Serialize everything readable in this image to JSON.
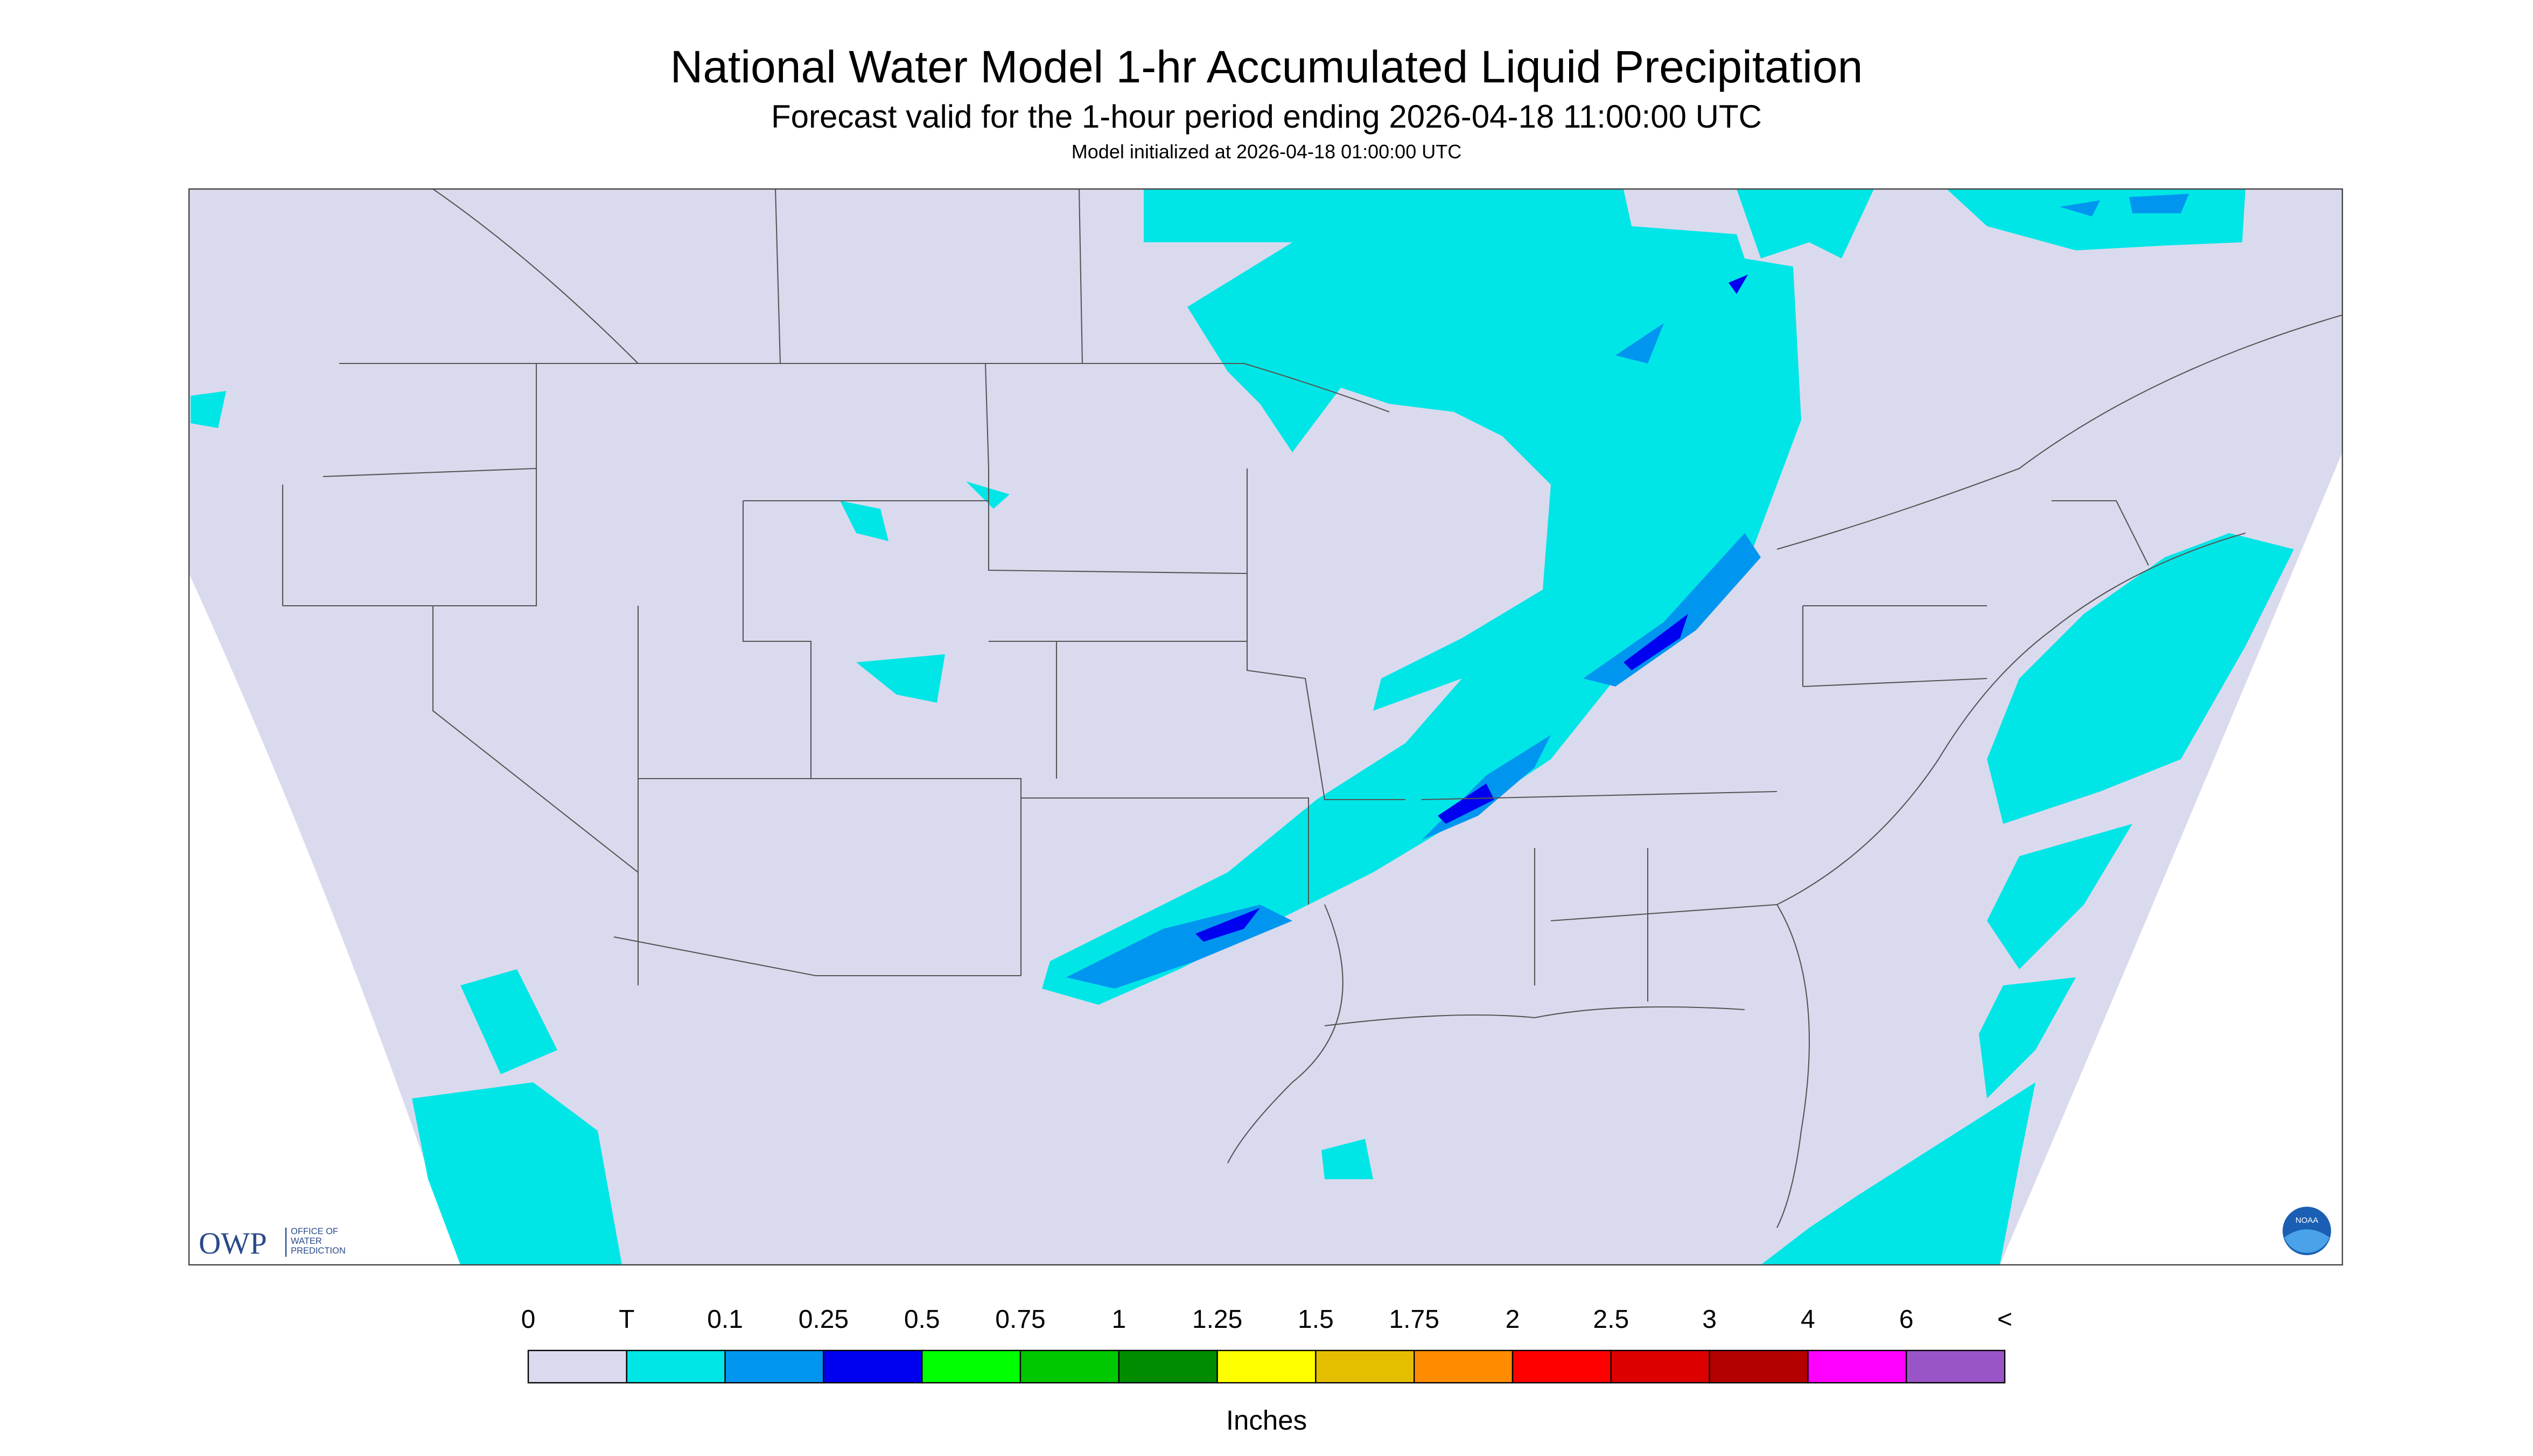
{
  "header": {
    "title": "National Water Model 1-hr Accumulated Liquid Precipitation",
    "subtitle": "Forecast valid for the 1-hour period ending 2026-04-18 11:00:00 UTC",
    "initialized": "Model initialized at 2026-04-18 01:00:00 UTC"
  },
  "logos": {
    "owp": "OWP",
    "owp_name": [
      "OFFICE OF",
      "WATER",
      "PREDICTION"
    ],
    "noaa": "NOAA"
  },
  "legend": {
    "labels": [
      "0",
      "T",
      "0.1",
      "0.25",
      "0.5",
      "0.75",
      "1",
      "1.25",
      "1.5",
      "1.75",
      "2",
      "2.5",
      "3",
      "4",
      "6",
      "<"
    ],
    "colors": [
      "#dadaee",
      "#00e6e6",
      "#0096f0",
      "#0000f0",
      "#00ff00",
      "#00c800",
      "#008c00",
      "#ffff00",
      "#e6be00",
      "#ff8c00",
      "#ff0000",
      "#dc0000",
      "#b40000",
      "#ff00ff",
      "#9955c8"
    ],
    "unit": "Inches"
  }
}
